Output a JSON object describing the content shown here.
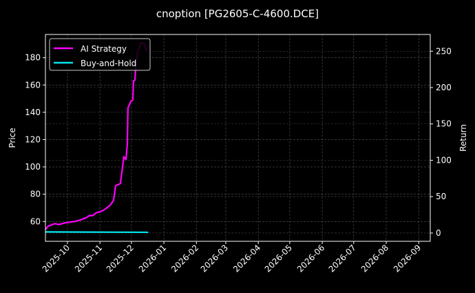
{
  "chart_data": {
    "type": "line",
    "title": "cnoption [PG2605-C-4600.DCE]",
    "xlabel": "",
    "ylabel": "Price",
    "y2label": "Return",
    "x_unit": "days since 2025-10-01",
    "xlim": [
      -21,
      346
    ],
    "ylim": [
      45.5,
      197
    ],
    "y2lim": [
      -11.4,
      273
    ],
    "grid": true,
    "legend_position": "top-left",
    "x_ticks": [
      {
        "label": "2025-10",
        "day": 0
      },
      {
        "label": "2025-11",
        "day": 31
      },
      {
        "label": "2025-12",
        "day": 61
      },
      {
        "label": "2026-01",
        "day": 92
      },
      {
        "label": "2026-02",
        "day": 123
      },
      {
        "label": "2026-03",
        "day": 151
      },
      {
        "label": "2026-04",
        "day": 182
      },
      {
        "label": "2026-05",
        "day": 212
      },
      {
        "label": "2026-06",
        "day": 243
      },
      {
        "label": "2026-07",
        "day": 273
      },
      {
        "label": "2026-08",
        "day": 304
      },
      {
        "label": "2026-09",
        "day": 335
      }
    ],
    "y_ticks": [
      60,
      80,
      100,
      120,
      140,
      160,
      180
    ],
    "y2_ticks": [
      0,
      50,
      100,
      150,
      200,
      250
    ],
    "series": [
      {
        "name": "AI Strategy",
        "axis": "right",
        "color": "#ff00ff",
        "x": [
          -21,
          -18.4,
          -11.8,
          -8.5,
          -2,
          7.9,
          14.4,
          17.7,
          21,
          24.3,
          27.6,
          30.8,
          34.1,
          40.7,
          44,
          45.9,
          50.5,
          53.8,
          55.8,
          57.1,
          57.7,
          60.4,
          62.3,
          63,
          64.3,
          64.9,
          66.9,
          70.2,
          73.5,
          75.4
        ],
        "y": [
          4.7,
          9.5,
          13,
          11.5,
          14,
          16,
          19,
          21,
          24,
          24,
          28,
          29,
          31,
          38,
          45,
          65,
          68,
          105,
          101,
          122,
          172,
          181,
          183,
          209,
          210,
          223,
          250,
          262,
          260,
          250
        ]
      },
      {
        "name": "Buy-and-Hold",
        "axis": "right",
        "color": "#00e5ee",
        "x": [
          -21,
          77
        ],
        "y": [
          1.5,
          1.0
        ]
      }
    ]
  }
}
